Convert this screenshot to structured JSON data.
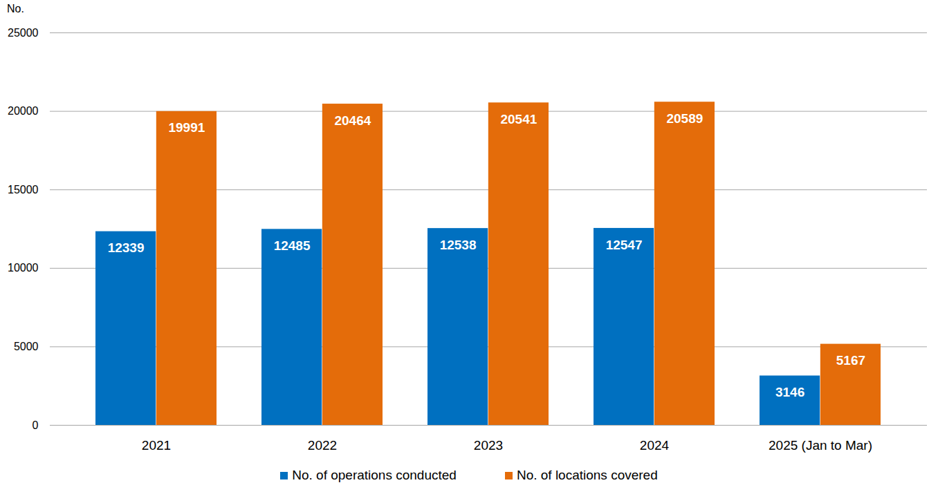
{
  "chart_data": {
    "type": "bar",
    "y_label": "No.",
    "categories": [
      "2021",
      "2022",
      "2023",
      "2024",
      "2025 (Jan to Mar)"
    ],
    "series": [
      {
        "name": "No. of operations conducted",
        "color": "#0070c0",
        "values": [
          12339,
          12485,
          12538,
          12547,
          3146
        ]
      },
      {
        "name": "No. of locations covered",
        "color": "#e46c0a",
        "values": [
          19991,
          20464,
          20541,
          20589,
          5167
        ]
      }
    ],
    "ylim": [
      0,
      25000
    ],
    "yticks": [
      0,
      5000,
      10000,
      15000,
      20000,
      25000
    ],
    "grid": true,
    "data_labels": true,
    "legend": "bottom"
  }
}
